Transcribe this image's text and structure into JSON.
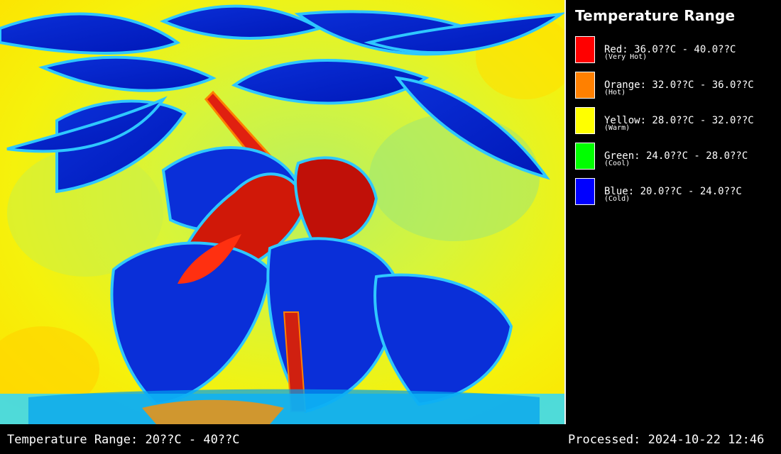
{
  "legend": {
    "title": "Temperature Range",
    "items": [
      {
        "range": "Red: 36.0??C - 40.0??C",
        "desc": "(Very Hot)",
        "color": "#ff0000"
      },
      {
        "range": "Orange: 32.0??C - 36.0??C",
        "desc": "(Hot)",
        "color": "#ff8000"
      },
      {
        "range": "Yellow: 28.0??C - 32.0??C",
        "desc": "(Warm)",
        "color": "#ffff00"
      },
      {
        "range": "Green: 24.0??C - 28.0??C",
        "desc": "(Cool)",
        "color": "#00ff00"
      },
      {
        "range": "Blue: 20.0??C - 24.0??C",
        "desc": "(Cold)",
        "color": "#0000ff"
      }
    ]
  },
  "footer": {
    "range": "Temperature Range: 20??C - 40??C",
    "processed": "Processed: 2024-10-22 12:46"
  }
}
